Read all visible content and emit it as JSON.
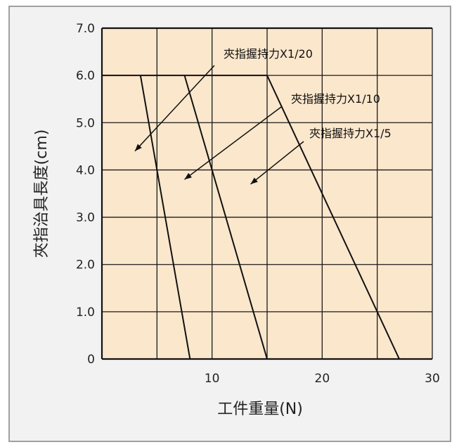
{
  "chart_data": {
    "type": "line",
    "xlabel": "工件重量(N)",
    "ylabel": "夾指治具長度(cm)",
    "xlim": [
      0,
      30
    ],
    "ylim": [
      0,
      7
    ],
    "x_ticks": [
      "10",
      "20",
      "30"
    ],
    "x_tick_values": [
      10,
      20,
      30
    ],
    "y_ticks": [
      "0",
      "1.0",
      "2.0",
      "3.0",
      "4.0",
      "5.0",
      "6.0",
      "7.0"
    ],
    "y_tick_values": [
      0,
      1,
      2,
      3,
      4,
      5,
      6,
      7
    ],
    "grid": true,
    "plot_background": "#fbe7cc",
    "frame_background": "#f2f2f2",
    "cap_line": {
      "x": [
        0,
        15
      ],
      "y": [
        6.0,
        6.0
      ]
    },
    "series": [
      {
        "name": "夾指握持力X1/20",
        "x": [
          3.5,
          8.0
        ],
        "y": [
          6.0,
          0
        ]
      },
      {
        "name": "夾指握持力X1/10",
        "x": [
          7.5,
          15.0
        ],
        "y": [
          6.0,
          0
        ]
      },
      {
        "name": "夾指握持力X1/5",
        "x": [
          15.0,
          27.0
        ],
        "y": [
          6.0,
          0
        ]
      }
    ],
    "annotations": [
      {
        "text": "夾指握持力X1/20",
        "arrow_to": [
          3.0,
          4.4
        ]
      },
      {
        "text": "夾指握持力X1/10",
        "arrow_to": [
          7.5,
          3.8
        ]
      },
      {
        "text": "夾指握持力X1/5",
        "arrow_to": [
          13.5,
          3.7
        ]
      }
    ]
  }
}
